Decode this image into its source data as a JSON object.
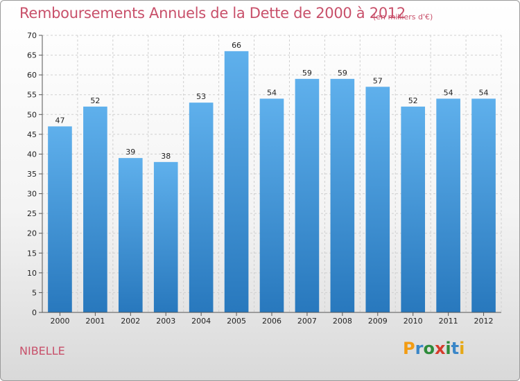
{
  "header": {
    "title": "Remboursements Annuels de la Dette de 2000 à 2012",
    "unit": "(en milliers d'€)"
  },
  "commune": "NIBELLE",
  "logo": {
    "letters": [
      "P",
      "r",
      "o",
      "x",
      "i",
      "t",
      "i"
    ],
    "colors": [
      "#f39c12",
      "#3a86c8",
      "#2e8b3a",
      "#d63b2b",
      "#2e8b3a",
      "#3a86c8",
      "#e6a817"
    ]
  },
  "chart_data": {
    "type": "bar",
    "title": "Remboursements Annuels de la Dette de 2000 à 2012",
    "categories": [
      "2000",
      "2001",
      "2002",
      "2003",
      "2004",
      "2005",
      "2006",
      "2007",
      "2008",
      "2009",
      "2010",
      "2011",
      "2012"
    ],
    "values": [
      47,
      52,
      39,
      38,
      53,
      66,
      54,
      59,
      59,
      57,
      52,
      54,
      54
    ],
    "ylim": [
      0,
      70
    ],
    "yticks": [
      0,
      5,
      10,
      15,
      20,
      25,
      30,
      35,
      40,
      45,
      50,
      55,
      60,
      65,
      70
    ],
    "grid": true,
    "bar_color": "#4a9fe0"
  }
}
